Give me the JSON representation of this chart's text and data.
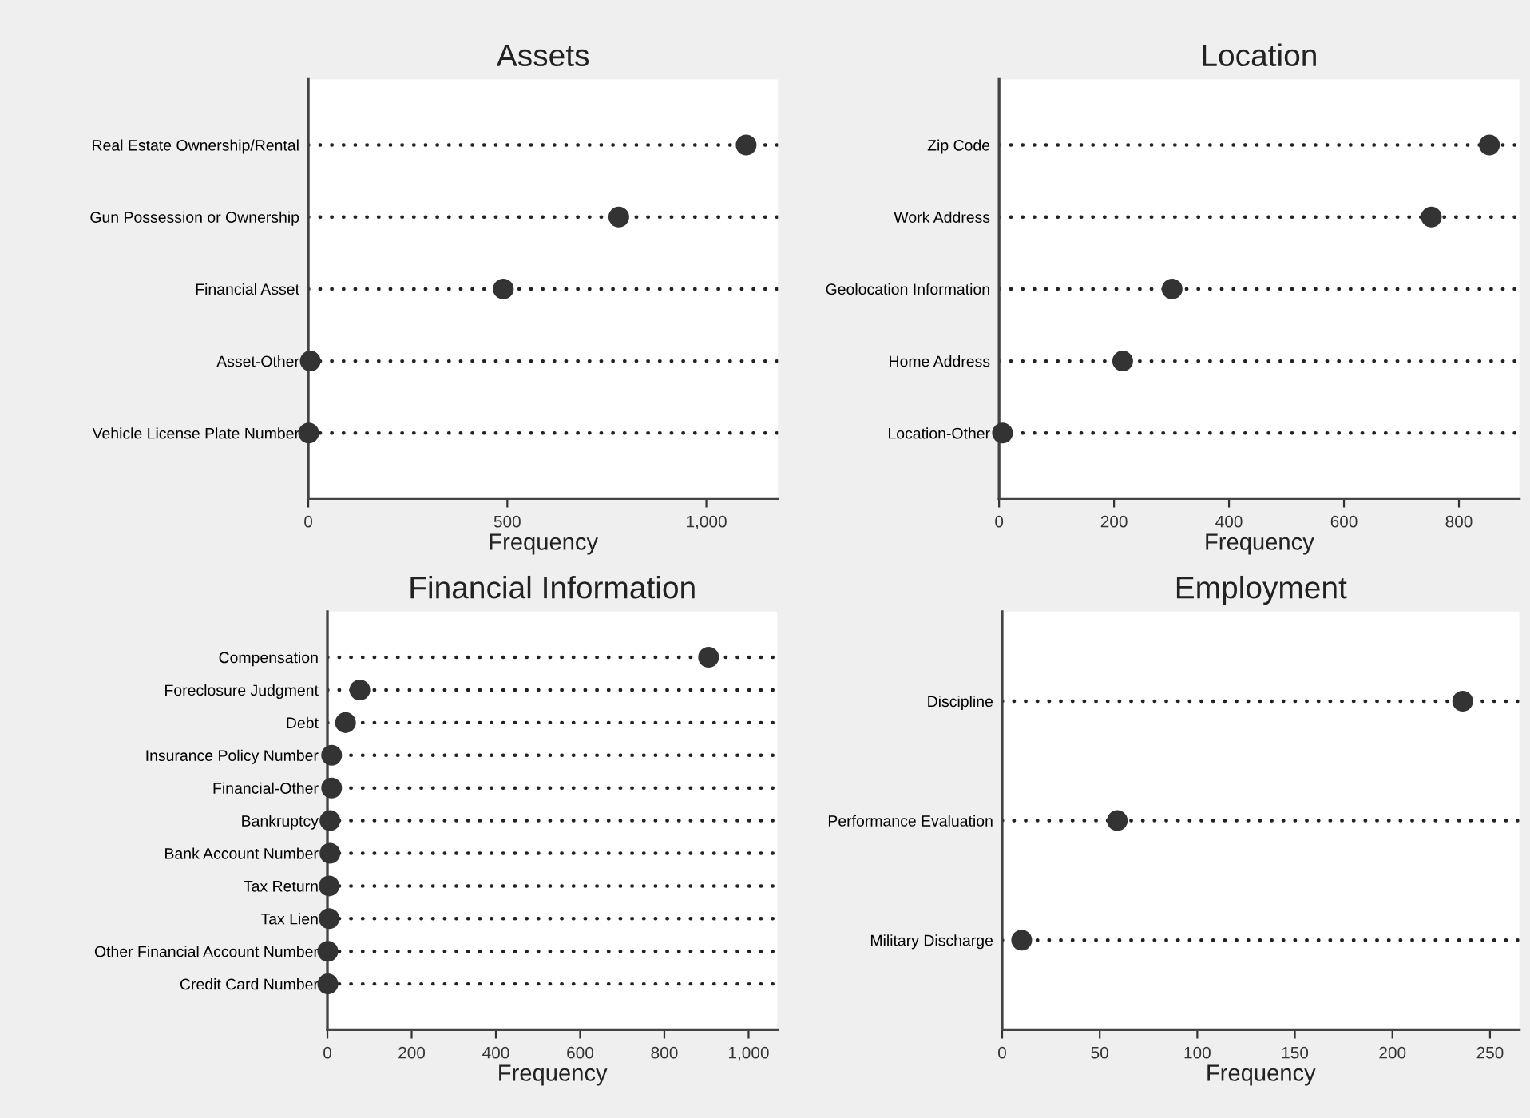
{
  "chart_data": [
    {
      "type": "scatter",
      "title": "Assets",
      "xlabel": "Frequency",
      "orientation": "horizontal",
      "grid": "y",
      "line_style": "dotted",
      "marker": "circle",
      "color": "#333333",
      "categories": [
        "Real Estate Ownership/Rental",
        "Gun Possession or Ownership",
        "Financial Asset",
        "Asset-Other",
        "Vehicle License Plate Number"
      ],
      "values": [
        1100,
        780,
        490,
        5,
        1
      ],
      "xlim": [
        0,
        1180
      ],
      "xticks": [
        0,
        500,
        {
          "value": 1000,
          "label": "1,000"
        }
      ]
    },
    {
      "type": "scatter",
      "title": "Location",
      "xlabel": "Frequency",
      "orientation": "horizontal",
      "grid": "y",
      "line_style": "dotted",
      "marker": "circle",
      "color": "#333333",
      "categories": [
        "Zip Code",
        "Work Address",
        "Geolocation Information",
        "Home Address",
        "Location-Other"
      ],
      "values": [
        853,
        752,
        301,
        215,
        6
      ],
      "xlim": [
        0,
        905
      ],
      "xticks": [
        0,
        200,
        400,
        600,
        800
      ]
    },
    {
      "type": "scatter",
      "title": "Financial Information",
      "xlabel": "Frequency",
      "orientation": "horizontal",
      "grid": "y",
      "line_style": "dotted",
      "marker": "circle",
      "color": "#333333",
      "categories": [
        "Compensation",
        "Foreclosure Judgment",
        "Debt",
        "Insurance Policy Number",
        "Financial-Other",
        "Bankruptcy",
        "Bank Account Number",
        "Tax Return",
        "Tax Lien",
        "Other Financial Account Number",
        "Credit Card Number"
      ],
      "values": [
        905,
        77,
        43,
        10,
        10,
        6,
        6,
        4,
        4,
        1,
        1
      ],
      "xlim": [
        0,
        1068
      ],
      "xticks": [
        0,
        200,
        400,
        600,
        800,
        {
          "value": 1000,
          "label": "1,000"
        }
      ]
    },
    {
      "type": "scatter",
      "title": "Employment",
      "xlabel": "Frequency",
      "orientation": "horizontal",
      "grid": "y",
      "line_style": "dotted",
      "marker": "circle",
      "color": "#333333",
      "categories": [
        "Discipline",
        "Performance Evaluation",
        "Military Discharge"
      ],
      "values": [
        236,
        59,
        10
      ],
      "xlim": [
        0,
        265
      ],
      "xticks": [
        0,
        50,
        100,
        150,
        200,
        250
      ]
    }
  ]
}
